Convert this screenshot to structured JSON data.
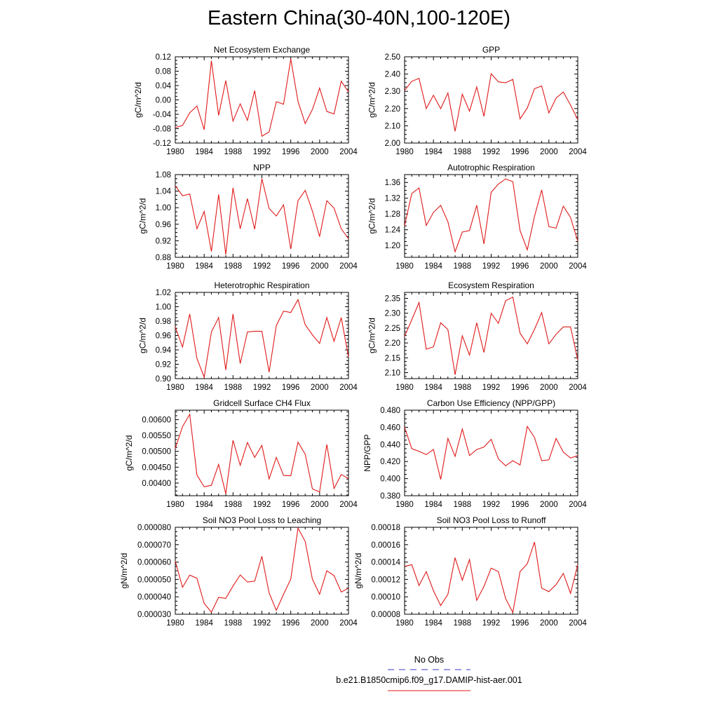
{
  "title": "Eastern China(30-40N,100-120E)",
  "legend": {
    "entries": [
      {
        "label": "No Obs",
        "color": "#3a3acf",
        "style": "dashed"
      },
      {
        "label": "b.e21.B1850cmip6.f09_g17.DAMIP-hist-aer.001",
        "color": "#e01a1a",
        "style": "solid"
      }
    ]
  },
  "chart_data": [
    {
      "type": "line",
      "title": "Net Ecosystem Exchange",
      "ylabel": "gC/m^2/d",
      "xlim": [
        1980,
        2004
      ],
      "ylim": [
        -0.12,
        0.12
      ],
      "x_ticks": [
        "1980",
        "1984",
        "1988",
        "1992",
        "1996",
        "2000",
        "2004"
      ],
      "y_ticks": [
        "-0.12",
        "-0.08",
        "-0.04",
        "0.00",
        "0.04",
        "0.08",
        "0.12"
      ],
      "series": [
        {
          "color": "#e01a1a",
          "x": [
            1980,
            1981,
            1982,
            1983,
            1984,
            1985,
            1986,
            1987,
            1988,
            1989,
            1990,
            1991,
            1992,
            1993,
            1994,
            1995,
            1996,
            1997,
            1998,
            1999,
            2000,
            2001,
            2002,
            2003,
            2004
          ],
          "values": [
            -0.077,
            -0.071,
            -0.036,
            -0.017,
            -0.083,
            0.109,
            -0.043,
            0.054,
            -0.059,
            -0.011,
            -0.057,
            0.026,
            -0.101,
            -0.089,
            -0.005,
            -0.012,
            0.114,
            -0.004,
            -0.066,
            -0.027,
            0.033,
            -0.032,
            -0.039,
            0.052,
            0.022
          ]
        }
      ]
    },
    {
      "type": "line",
      "title": "GPP",
      "ylabel": "gC/m^2/d",
      "xlim": [
        1980,
        2004
      ],
      "ylim": [
        2.0,
        2.5
      ],
      "x_ticks": [
        "1980",
        "1984",
        "1988",
        "1992",
        "1996",
        "2000",
        "2004"
      ],
      "y_ticks": [
        "2.00",
        "2.10",
        "2.20",
        "2.30",
        "2.40",
        "2.50"
      ],
      "series": [
        {
          "color": "#e01a1a",
          "x": [
            1980,
            1981,
            1982,
            1983,
            1984,
            1985,
            1986,
            1987,
            1988,
            1989,
            1990,
            1991,
            1992,
            1993,
            1994,
            1995,
            1996,
            1997,
            1998,
            1999,
            2000,
            2001,
            2002,
            2003,
            2004
          ],
          "values": [
            2.305,
            2.358,
            2.375,
            2.2,
            2.277,
            2.199,
            2.29,
            2.068,
            2.283,
            2.185,
            2.325,
            2.155,
            2.402,
            2.355,
            2.349,
            2.369,
            2.14,
            2.203,
            2.315,
            2.331,
            2.175,
            2.261,
            2.296,
            2.22,
            2.135
          ]
        }
      ]
    },
    {
      "type": "line",
      "title": "NPP",
      "ylabel": "gC/m^2/d",
      "xlim": [
        1980,
        2004
      ],
      "ylim": [
        0.88,
        1.08
      ],
      "x_ticks": [
        "1980",
        "1984",
        "1988",
        "1992",
        "1996",
        "2000",
        "2004"
      ],
      "y_ticks": [
        "0.88",
        "0.92",
        "0.96",
        "1.00",
        "1.04",
        "1.08"
      ],
      "series": [
        {
          "color": "#e01a1a",
          "x": [
            1980,
            1981,
            1982,
            1983,
            1984,
            1985,
            1986,
            1987,
            1988,
            1989,
            1990,
            1991,
            1992,
            1993,
            1994,
            1995,
            1996,
            1997,
            1998,
            1999,
            2000,
            2001,
            2002,
            2003,
            2004
          ],
          "values": [
            1.053,
            1.029,
            1.033,
            0.949,
            0.991,
            0.894,
            1.032,
            0.887,
            1.048,
            0.949,
            1.022,
            0.948,
            1.07,
            0.998,
            0.98,
            1.007,
            0.9,
            1.017,
            1.042,
            0.992,
            0.93,
            1.017,
            0.999,
            0.949,
            0.925
          ]
        }
      ]
    },
    {
      "type": "line",
      "title": "Autotrophic Respiration",
      "ylabel": "gC/m^2/d",
      "xlim": [
        1980,
        2004
      ],
      "ylim": [
        1.17,
        1.38
      ],
      "x_ticks": [
        "1980",
        "1984",
        "1988",
        "1992",
        "1996",
        "2000",
        "2004"
      ],
      "y_ticks": [
        "1.20",
        "1.24",
        "1.28",
        "1.32",
        "1.36"
      ],
      "series": [
        {
          "color": "#e01a1a",
          "x": [
            1980,
            1981,
            1982,
            1983,
            1984,
            1985,
            1986,
            1987,
            1988,
            1989,
            1990,
            1991,
            1992,
            1993,
            1994,
            1995,
            1996,
            1997,
            1998,
            1999,
            2000,
            2001,
            2002,
            2003,
            2004
          ],
          "values": [
            1.25,
            1.332,
            1.346,
            1.251,
            1.284,
            1.302,
            1.26,
            1.184,
            1.234,
            1.238,
            1.302,
            1.204,
            1.335,
            1.356,
            1.369,
            1.362,
            1.238,
            1.189,
            1.274,
            1.341,
            1.248,
            1.244,
            1.3,
            1.271,
            1.211
          ]
        }
      ]
    },
    {
      "type": "line",
      "title": "Heterotrophic Respiration",
      "ylabel": "gC/m^2/d",
      "xlim": [
        1980,
        2004
      ],
      "ylim": [
        0.9,
        1.02
      ],
      "x_ticks": [
        "1980",
        "1984",
        "1988",
        "1992",
        "1996",
        "2000",
        "2004"
      ],
      "y_ticks": [
        "0.90",
        "0.92",
        "0.94",
        "0.96",
        "0.98",
        "1.00",
        "1.02"
      ],
      "series": [
        {
          "color": "#e01a1a",
          "x": [
            1980,
            1981,
            1982,
            1983,
            1984,
            1985,
            1986,
            1987,
            1988,
            1989,
            1990,
            1991,
            1992,
            1993,
            1994,
            1995,
            1996,
            1997,
            1998,
            1999,
            2000,
            2001,
            2002,
            2003,
            2004
          ],
          "values": [
            0.972,
            0.944,
            0.99,
            0.928,
            0.902,
            0.965,
            0.985,
            0.912,
            0.99,
            0.921,
            0.965,
            0.966,
            0.966,
            0.909,
            0.974,
            0.994,
            0.992,
            1.01,
            0.975,
            0.961,
            0.949,
            0.985,
            0.952,
            0.985,
            0.93
          ]
        }
      ]
    },
    {
      "type": "line",
      "title": "Ecosystem Respiration",
      "ylabel": "gC/m^2/d",
      "xlim": [
        1980,
        2004
      ],
      "ylim": [
        2.08,
        2.37
      ],
      "x_ticks": [
        "1980",
        "1984",
        "1988",
        "1992",
        "1996",
        "2000",
        "2004"
      ],
      "y_ticks": [
        "2.10",
        "2.15",
        "2.20",
        "2.25",
        "2.30",
        "2.35"
      ],
      "series": [
        {
          "color": "#e01a1a",
          "x": [
            1980,
            1981,
            1982,
            1983,
            1984,
            1985,
            1986,
            1987,
            1988,
            1989,
            1990,
            1991,
            1992,
            1993,
            1994,
            1995,
            1996,
            1997,
            1998,
            1999,
            2000,
            2001,
            2002,
            2003,
            2004
          ],
          "values": [
            2.222,
            2.278,
            2.336,
            2.179,
            2.187,
            2.268,
            2.245,
            2.093,
            2.224,
            2.159,
            2.268,
            2.168,
            2.3,
            2.266,
            2.342,
            2.354,
            2.233,
            2.197,
            2.246,
            2.302,
            2.197,
            2.229,
            2.254,
            2.254,
            2.143
          ]
        }
      ]
    },
    {
      "type": "line",
      "title": "Gridcell Surface CH4 Flux",
      "ylabel": "gC/m^2/d",
      "xlim": [
        1980,
        2004
      ],
      "ylim": [
        0.0036,
        0.0063
      ],
      "x_ticks": [
        "1980",
        "1984",
        "1988",
        "1992",
        "1996",
        "2000",
        "2004"
      ],
      "y_ticks": [
        "0.00400",
        "0.00450",
        "0.00500",
        "0.00550",
        "0.00600"
      ],
      "series": [
        {
          "color": "#e01a1a",
          "x": [
            1980,
            1981,
            1982,
            1983,
            1984,
            1985,
            1986,
            1987,
            1988,
            1989,
            1990,
            1991,
            1992,
            1993,
            1994,
            1995,
            1996,
            1997,
            1998,
            1999,
            2000,
            2001,
            2002,
            2003,
            2004
          ],
          "values": [
            0.00509,
            0.00578,
            0.00617,
            0.00425,
            0.00388,
            0.00393,
            0.00459,
            0.00366,
            0.00535,
            0.00456,
            0.00528,
            0.00481,
            0.00519,
            0.00413,
            0.00481,
            0.00424,
            0.00423,
            0.00529,
            0.00491,
            0.00382,
            0.00372,
            0.00522,
            0.00383,
            0.00427,
            0.00414
          ]
        }
      ]
    },
    {
      "type": "line",
      "title": "Carbon Use Efficiency (NPP/GPP)",
      "ylabel": "NPP/GPP",
      "xlim": [
        1980,
        2004
      ],
      "ylim": [
        0.38,
        0.48
      ],
      "x_ticks": [
        "1980",
        "1984",
        "1988",
        "1992",
        "1996",
        "2000",
        "2004"
      ],
      "y_ticks": [
        "0.380",
        "0.400",
        "0.420",
        "0.440",
        "0.460",
        "0.480"
      ],
      "series": [
        {
          "color": "#e01a1a",
          "x": [
            1980,
            1981,
            1982,
            1983,
            1984,
            1985,
            1986,
            1987,
            1988,
            1989,
            1990,
            1991,
            1992,
            1993,
            1994,
            1995,
            1996,
            1997,
            1998,
            1999,
            2000,
            2001,
            2002,
            2003,
            2004
          ],
          "values": [
            0.46,
            0.435,
            0.432,
            0.428,
            0.434,
            0.399,
            0.447,
            0.426,
            0.458,
            0.427,
            0.434,
            0.437,
            0.446,
            0.423,
            0.415,
            0.421,
            0.416,
            0.461,
            0.448,
            0.421,
            0.422,
            0.447,
            0.431,
            0.424,
            0.427
          ]
        }
      ]
    },
    {
      "type": "line",
      "title": "Soil NO3 Pool Loss to Leaching",
      "ylabel": "gN/m^2/d",
      "xlim": [
        1980,
        2004
      ],
      "ylim": [
        3e-05,
        8e-05
      ],
      "x_ticks": [
        "1980",
        "1984",
        "1988",
        "1992",
        "1996",
        "2000",
        "2004"
      ],
      "y_ticks": [
        "0.000030",
        "0.000040",
        "0.000050",
        "0.000060",
        "0.000070",
        "0.000080"
      ],
      "series": [
        {
          "color": "#e01a1a",
          "x": [
            1980,
            1981,
            1982,
            1983,
            1984,
            1985,
            1986,
            1987,
            1988,
            1989,
            1990,
            1991,
            1992,
            1993,
            1994,
            1995,
            1996,
            1997,
            1998,
            1999,
            2000,
            2001,
            2002,
            2003,
            2004
          ],
          "values": [
            6.05e-05,
            4.55e-05,
            5.25e-05,
            5.07e-05,
            3.62e-05,
            3.12e-05,
            3.97e-05,
            3.91e-05,
            4.62e-05,
            5.26e-05,
            4.85e-05,
            4.9e-05,
            6.33e-05,
            4.22e-05,
            3.22e-05,
            4.15e-05,
            5.02e-05,
            7.95e-05,
            7.18e-05,
            5.02e-05,
            4.15e-05,
            5.5e-05,
            5.22e-05,
            4.28e-05,
            4.5e-05
          ]
        }
      ]
    },
    {
      "type": "line",
      "title": "Soil NO3 Pool Loss to Runoff",
      "ylabel": "gN/m^2/d",
      "xlim": [
        1980,
        2004
      ],
      "ylim": [
        8e-05,
        0.00018
      ],
      "x_ticks": [
        "1980",
        "1984",
        "1988",
        "1992",
        "1996",
        "2000",
        "2004"
      ],
      "y_ticks": [
        "0.00008",
        "0.00010",
        "0.00012",
        "0.00014",
        "0.00016",
        "0.00018"
      ],
      "series": [
        {
          "color": "#e01a1a",
          "x": [
            1980,
            1981,
            1982,
            1983,
            1984,
            1985,
            1986,
            1987,
            1988,
            1989,
            1990,
            1991,
            1992,
            1993,
            1994,
            1995,
            1996,
            1997,
            1998,
            1999,
            2000,
            2001,
            2002,
            2003,
            2004
          ],
          "values": [
            0.000135,
            0.000137,
            0.000113,
            0.000129,
            0.000107,
            9e-05,
            0.000103,
            0.000145,
            0.000119,
            0.000143,
            9.6e-05,
            0.000112,
            0.000133,
            0.000129,
            9.8e-05,
            8.2e-05,
            0.000129,
            0.000138,
            0.000163,
            0.00011,
            0.000106,
            0.000114,
            0.000127,
            0.000104,
            0.000137
          ]
        }
      ]
    }
  ]
}
